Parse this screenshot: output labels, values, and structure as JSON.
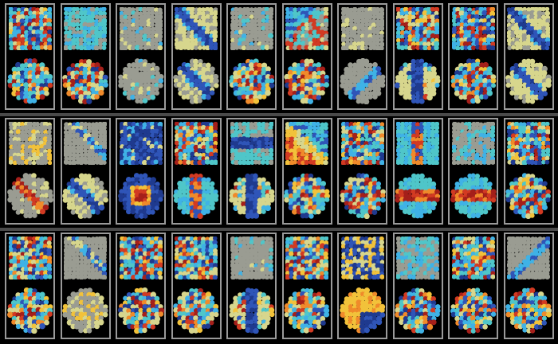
{
  "figure": {
    "rows": 3,
    "columns": 10,
    "row_groups": [
      {
        "row": 1,
        "panels": [
          {
            "square": "multicolor",
            "circle": "multicolor"
          },
          {
            "square": "cyan-gray",
            "circle": "multicolor"
          },
          {
            "square": "gray-sparse",
            "circle": "gray-sparse"
          },
          {
            "square": "diagonal-blue-band",
            "circle": "blue-band"
          },
          {
            "square": "gray-sparse",
            "circle": "multicolor"
          },
          {
            "square": "diagonal-cyan",
            "circle": "multicolor"
          },
          {
            "square": "gray",
            "circle": "gray-band"
          },
          {
            "square": "multicolor",
            "circle": "vertical-blue-band"
          },
          {
            "square": "multicolor",
            "circle": "multicolor"
          },
          {
            "square": "diagonal-blue-band",
            "circle": "blue-band"
          }
        ]
      },
      {
        "row": 2,
        "panels": [
          {
            "square": "gray-yellow",
            "circle": "diagonal-red-band"
          },
          {
            "square": "gray-diagonal",
            "circle": "blue-band"
          },
          {
            "square": "blue-dense",
            "circle": "red-core"
          },
          {
            "square": "multicolor",
            "circle": "vertical-band"
          },
          {
            "square": "horizontal-blue-band",
            "circle": "vertical-blue-band"
          },
          {
            "square": "diagonal-red-yellow",
            "circle": "multicolor"
          },
          {
            "square": "multicolor",
            "circle": "multicolor"
          },
          {
            "square": "vertical-band",
            "circle": "horizontal-band"
          },
          {
            "square": "gray-cyan",
            "circle": "horizontal-band"
          },
          {
            "square": "multicolor",
            "circle": "multicolor"
          }
        ]
      },
      {
        "row": 3,
        "panels": [
          {
            "square": "multicolor",
            "circle": "multicolor"
          },
          {
            "square": "gray-diagonal",
            "circle": "gray-yellow"
          },
          {
            "square": "multicolor",
            "circle": "multicolor"
          },
          {
            "square": "multicolor",
            "circle": "multicolor"
          },
          {
            "square": "gray-sparse",
            "circle": "vertical-blue-band"
          },
          {
            "square": "multicolor",
            "circle": "multicolor"
          },
          {
            "square": "blue-yellow",
            "circle": "yellow-blue-split"
          },
          {
            "square": "gray-cyan",
            "circle": "multicolor"
          },
          {
            "square": "multicolor",
            "circle": "multicolor"
          },
          {
            "square": "gray-band",
            "circle": "multicolor"
          }
        ]
      }
    ]
  },
  "colors": {
    "background": "#000000",
    "panel_border": "#9a9a9a",
    "row_separator": "#4a4a4a",
    "gray": "#9a9c92",
    "pale_yellow": "#d7d68d",
    "yellow": "#f2c23a",
    "orange": "#f08a2a",
    "red": "#d23a22",
    "dark_red": "#a51f1a",
    "blue": "#2f55b8",
    "dark_blue": "#1f3a8f",
    "light_blue": "#3fb2e6",
    "cyan": "#4fc6c9"
  }
}
